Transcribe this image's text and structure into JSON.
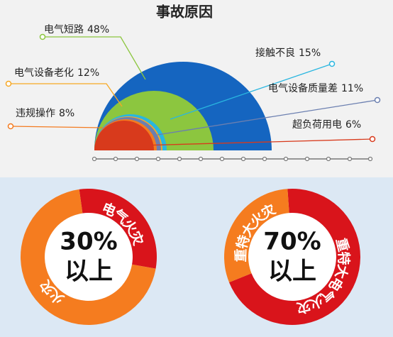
{
  "chart_data": [
    {
      "type": "semicircle",
      "title": "事故原因",
      "categories": [
        "电气短路",
        "接触不良",
        "电气设备老化",
        "电气设备质量差",
        "违规操作",
        "超负荷用电"
      ],
      "values": [
        48,
        15,
        12,
        11,
        8,
        6
      ],
      "value_labels": [
        "48%",
        "15%",
        "12%",
        "11%",
        "8%",
        "6%"
      ],
      "colors": [
        "#8cc63f",
        "#29b6e0",
        "#f7a823",
        "#6b7fb0",
        "#f47b20",
        "#d83a1c"
      ]
    },
    {
      "type": "donut",
      "categories": [
        "电气火灾",
        "火灾"
      ],
      "values": [
        30,
        70
      ],
      "colors": [
        "#d9141b",
        "#f57c1f"
      ],
      "center_text": [
        "30%",
        "以上"
      ]
    },
    {
      "type": "donut",
      "categories": [
        "重特大电气火灾",
        "重特大火灾"
      ],
      "values": [
        70,
        30
      ],
      "colors": [
        "#d9141b",
        "#f57c1f"
      ],
      "center_text": [
        "70%",
        "以上"
      ]
    }
  ]
}
